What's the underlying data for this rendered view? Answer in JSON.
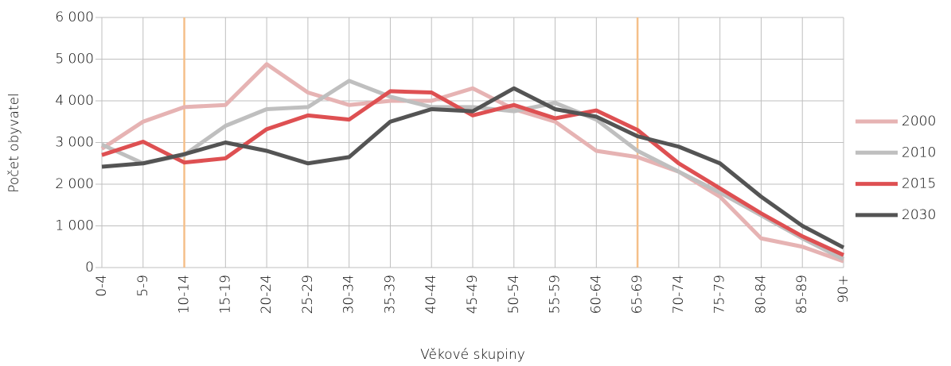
{
  "chart_data": {
    "type": "line",
    "x_label": "Věkové skupiny",
    "y_label": "Počet obyvatel",
    "categories": [
      "0-4",
      "5-9",
      "10-14",
      "15-19",
      "20-24",
      "25-29",
      "30-34",
      "35-39",
      "40-44",
      "45-49",
      "50-54",
      "55-59",
      "60-64",
      "65-69",
      "70-74",
      "75-79",
      "80-84",
      "85-89",
      "90+"
    ],
    "series": [
      {
        "name": "2000",
        "color": "#e6b3b3",
        "values": [
          2850,
          3500,
          3850,
          3900,
          4880,
          4200,
          3900,
          4000,
          4000,
          4300,
          3800,
          3500,
          2800,
          2650,
          2300,
          1700,
          700,
          500,
          150
        ]
      },
      {
        "name": "2010",
        "color": "#bfbfbf",
        "values": [
          2950,
          2500,
          2700,
          3400,
          3800,
          3850,
          4480,
          4100,
          3850,
          3850,
          3750,
          3950,
          3550,
          2800,
          2300,
          1800,
          1250,
          700,
          200
        ]
      },
      {
        "name": "2015",
        "color": "#de5052",
        "values": [
          2700,
          3020,
          2520,
          2620,
          3320,
          3650,
          3550,
          4230,
          4200,
          3650,
          3900,
          3580,
          3770,
          3300,
          2500,
          1900,
          1300,
          750,
          300
        ]
      },
      {
        "name": "2030",
        "color": "#545454",
        "values": [
          2420,
          2500,
          2720,
          3000,
          2800,
          2500,
          2650,
          3500,
          3800,
          3750,
          4300,
          3800,
          3620,
          3150,
          2900,
          2500,
          1700,
          1000,
          480
        ]
      }
    ],
    "ylim": [
      0,
      6000
    ],
    "yticks": [
      0,
      {
        "value": 1000,
        "label": "1 000"
      },
      {
        "value": 2000,
        "label": "2 000"
      },
      {
        "value": 3000,
        "label": "3 000"
      },
      {
        "value": 4000,
        "label": "4 000"
      },
      {
        "value": 5000,
        "label": "5 000"
      },
      {
        "value": 6000,
        "label": "6 000"
      }
    ],
    "grid": true,
    "legend": "right",
    "reference_lines": {
      "color": "#f5c08a",
      "categories": [
        "10-14",
        "65-69"
      ]
    }
  }
}
